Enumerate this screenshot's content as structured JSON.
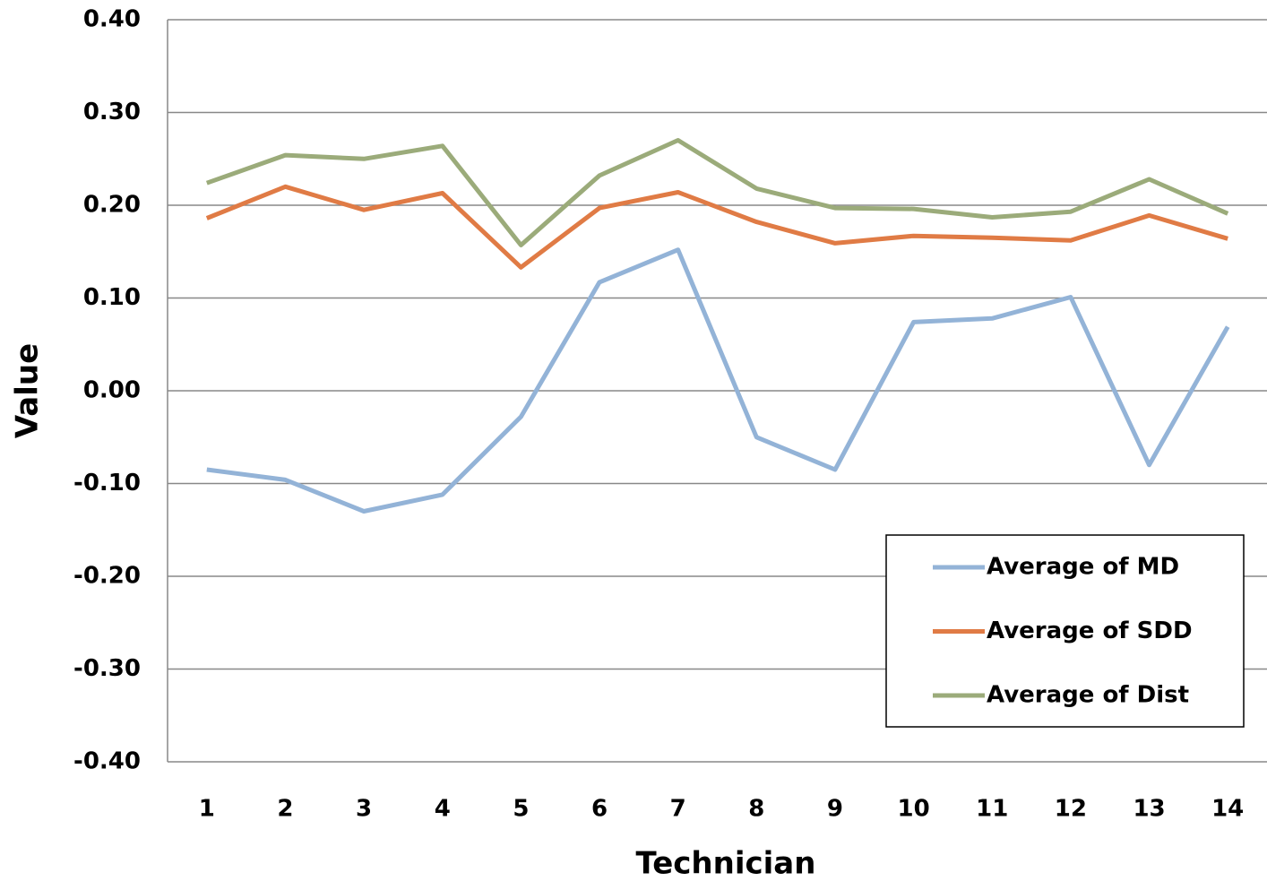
{
  "chart_data": {
    "type": "line",
    "x_label": "Technician",
    "y_label": "Value",
    "categories": [
      "1",
      "2",
      "3",
      "4",
      "5",
      "6",
      "7",
      "8",
      "9",
      "10",
      "11",
      "12",
      "13",
      "14"
    ],
    "series": [
      {
        "name": "Average of MD",
        "color": "#93b3d7",
        "values": [
          -0.085,
          -0.096,
          -0.13,
          -0.112,
          -0.028,
          0.117,
          0.152,
          -0.05,
          -0.085,
          0.074,
          0.078,
          0.101,
          -0.08,
          0.069
        ]
      },
      {
        "name": "Average of SDD",
        "color": "#e07b45",
        "values": [
          0.186,
          0.22,
          0.195,
          0.213,
          0.133,
          0.197,
          0.214,
          0.182,
          0.159,
          0.167,
          0.165,
          0.162,
          0.189,
          0.164
        ]
      },
      {
        "name": "Average of Dist",
        "color": "#9bab7a",
        "values": [
          0.224,
          0.254,
          0.25,
          0.264,
          0.157,
          0.232,
          0.27,
          0.218,
          0.197,
          0.196,
          0.187,
          0.193,
          0.228,
          0.191
        ]
      }
    ],
    "ylim": [
      -0.4,
      0.4
    ],
    "yticks": [
      {
        "value": -0.4,
        "label": "-0.40"
      },
      {
        "value": -0.3,
        "label": "-0.30"
      },
      {
        "value": -0.2,
        "label": "-0.20"
      },
      {
        "value": -0.1,
        "label": "-0.10"
      },
      {
        "value": 0,
        "label": "0.00"
      },
      {
        "value": 0.1,
        "label": "0.10"
      },
      {
        "value": 0.2,
        "label": "0.20"
      },
      {
        "value": 0.3,
        "label": "0.30"
      },
      {
        "value": 0.4,
        "label": "0.40"
      }
    ],
    "grid": true,
    "legend": "lower right"
  }
}
